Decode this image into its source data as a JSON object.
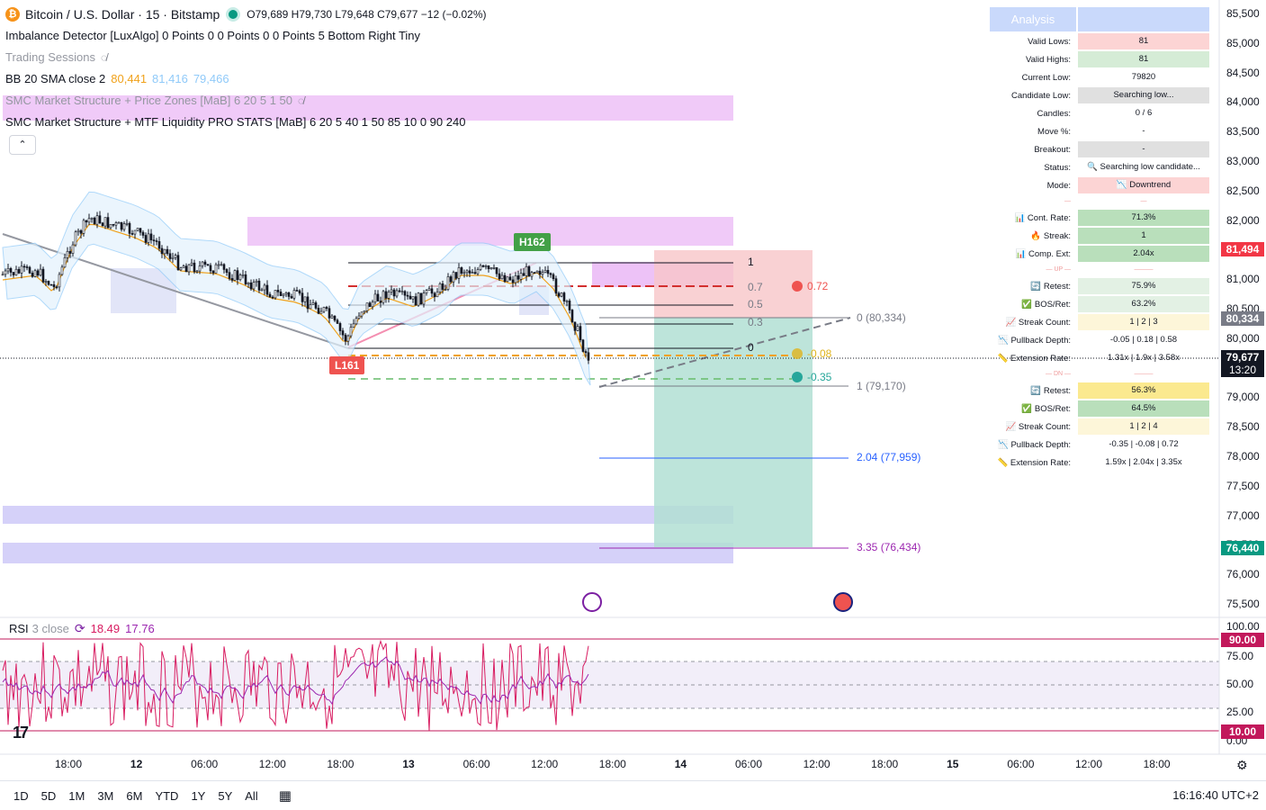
{
  "header": {
    "symbol": "Bitcoin / U.S. Dollar · 15 · Bitstamp",
    "ohlc": "O79,689 H79,730 L79,648 C79,677 −12 (−0.02%)",
    "indicators": [
      {
        "text": "Imbalance Detector [LuxAlgo] 0 Points 0 0 Points 0 0 Points 5 Bottom Right Tiny",
        "muted": false
      },
      {
        "text": "Trading Sessions",
        "muted": true
      },
      {
        "text": "BB 20 SMA close 2",
        "muted": false
      },
      {
        "text": "SMC Market Structure + Price Zones [MaB] 6 20 5 1 50",
        "muted": true
      },
      {
        "text": "SMC Market Structure + MTF Liquidity PRO STATS [MaB] 6 20 5 40 1 50 85 10 0 90 240",
        "muted": false
      }
    ],
    "bb_values": [
      "80,441",
      "81,416",
      "79,466"
    ],
    "bb_colors": [
      "#f0a11a",
      "#90caf9",
      "#90caf9"
    ]
  },
  "price_axis": {
    "ticks": [
      "85,500",
      "85,000",
      "84,500",
      "84,000",
      "83,500",
      "83,000",
      "82,500",
      "82,000",
      "81,500",
      "81,000",
      "80,500",
      "80,000",
      "79,500",
      "79,000",
      "78,500",
      "78,000",
      "77,500",
      "77,000",
      "76,500",
      "76,000",
      "75,500"
    ],
    "tags": {
      "high_tag": "81,494",
      "mid_tag": "80,334",
      "last_price": "79,677",
      "countdown": "13:20",
      "target_tag": "76,440"
    },
    "rsi_ticks": [
      "100.00",
      "75.00",
      "50.00",
      "25.00",
      "0.00"
    ],
    "rsi_tags": [
      "90.00",
      "10.00"
    ]
  },
  "time_axis": {
    "ticks": [
      "18:00",
      "12",
      "06:00",
      "12:00",
      "18:00",
      "13",
      "06:00",
      "12:00",
      "18:00",
      "14",
      "06:00",
      "12:00",
      "18:00",
      "15",
      "06:00",
      "12:00",
      "18:00"
    ]
  },
  "fib": {
    "left_levels": [
      "1",
      "0.7",
      "0.5",
      "0.3",
      "0"
    ],
    "right_levels": [
      {
        "text": "0 (80,334)",
        "color": "#787b86"
      },
      {
        "text": "1 (79,170)",
        "color": "#787b86"
      },
      {
        "text": "2.04 (77,959)",
        "color": "#2962ff"
      },
      {
        "text": "3.35 (76,434)",
        "color": "#9c27b0"
      }
    ],
    "dots": [
      {
        "text": "0.72",
        "color": "#ef5350"
      },
      {
        "text": "-0.08",
        "color": "#e0b31b"
      },
      {
        "text": "-0.35",
        "color": "#26a69a"
      }
    ]
  },
  "markers": {
    "high": "H162",
    "low": "L161"
  },
  "analysis_panel": {
    "title": "Analysis",
    "rows": [
      {
        "label": "Valid Lows:",
        "value": "81",
        "bg": "#fcd4d4"
      },
      {
        "label": "Valid Highs:",
        "value": "81",
        "bg": "#d5ecd6"
      },
      {
        "label": "Current Low:",
        "value": "79820",
        "bg": ""
      },
      {
        "label": "Candidate Low:",
        "value": "Searching low...",
        "bg": "#e0e0e0"
      },
      {
        "label": "Candles:",
        "value": "0 / 6",
        "bg": ""
      },
      {
        "label": "Move %:",
        "value": "-",
        "bg": ""
      },
      {
        "label": "Breakout:",
        "value": "-",
        "bg": "#e0e0e0"
      },
      {
        "label": "Status:",
        "value": "🔍 Searching low candidate...",
        "bg": ""
      },
      {
        "label": "Mode:",
        "value": "📉 Downtrend",
        "bg": "#fcd4d4"
      },
      {
        "label": "—",
        "value": "—",
        "bg": "",
        "sep": true
      },
      {
        "label": "📊 Cont. Rate:",
        "value": "71.3%",
        "bg": "#b9dfbb"
      },
      {
        "label": "🔥 Streak:",
        "value": "1",
        "bg": "#b9dfbb"
      },
      {
        "label": "📊 Comp. Ext:",
        "value": "2.04x",
        "bg": "#b9dfbb"
      },
      {
        "label": "— UP —",
        "value": "———",
        "bg": "",
        "sep": true
      },
      {
        "label": "🔄 Retest:",
        "value": "75.9%",
        "bg": "#e3f1e4"
      },
      {
        "label": "✅ BOS/Ret:",
        "value": "63.2%",
        "bg": "#e3f1e4"
      },
      {
        "label": "📈 Streak Count:",
        "value": "1 | 2 | 3",
        "bg": "#fdf6d9"
      },
      {
        "label": "📉 Pullback Depth:",
        "value": "-0.05 | 0.18 | 0.58",
        "bg": ""
      },
      {
        "label": "📏 Extension Rate:",
        "value": "1.31x | 1.9x | 3.58x",
        "bg": ""
      },
      {
        "label": "— DN —",
        "value": "———",
        "bg": "",
        "sep": true
      },
      {
        "label": "🔄 Retest:",
        "value": "56.3%",
        "bg": "#fbe98f"
      },
      {
        "label": "✅ BOS/Ret:",
        "value": "64.5%",
        "bg": "#b9dfbb"
      },
      {
        "label": "📈 Streak Count:",
        "value": "1 | 2 | 4",
        "bg": "#fdf6d9"
      },
      {
        "label": "📉 Pullback Depth:",
        "value": "-0.35 | -0.08 | 0.72",
        "bg": ""
      },
      {
        "label": "📏 Extension Rate:",
        "value": "1.59x | 2.04x | 3.35x",
        "bg": ""
      }
    ]
  },
  "rsi": {
    "label": "RSI",
    "params": "3 close",
    "value1": "18.49",
    "value2": "17.76"
  },
  "bottom_bar": {
    "ranges": [
      "1D",
      "5D",
      "1M",
      "3M",
      "6M",
      "YTD",
      "1Y",
      "5Y",
      "All"
    ],
    "clock": "16:16:40 UTC+2"
  },
  "icons": {
    "symbol_icon": "bitcoin-icon",
    "live_icon": "live-dot-icon",
    "eye_icon": "eye-off-icon",
    "compare_icon": "calendar-compare-icon",
    "settings_icon": "gear-icon",
    "logo": "tradingview-logo"
  },
  "colors": {
    "up": "#089981",
    "down": "#f23645",
    "bb_band": "#e3f2fd",
    "zone_pink": "#e9b3f5",
    "zone_purple": "#cbc5f7",
    "rsi_line": "#d81b60",
    "rsi_ma": "#9c27b0"
  }
}
